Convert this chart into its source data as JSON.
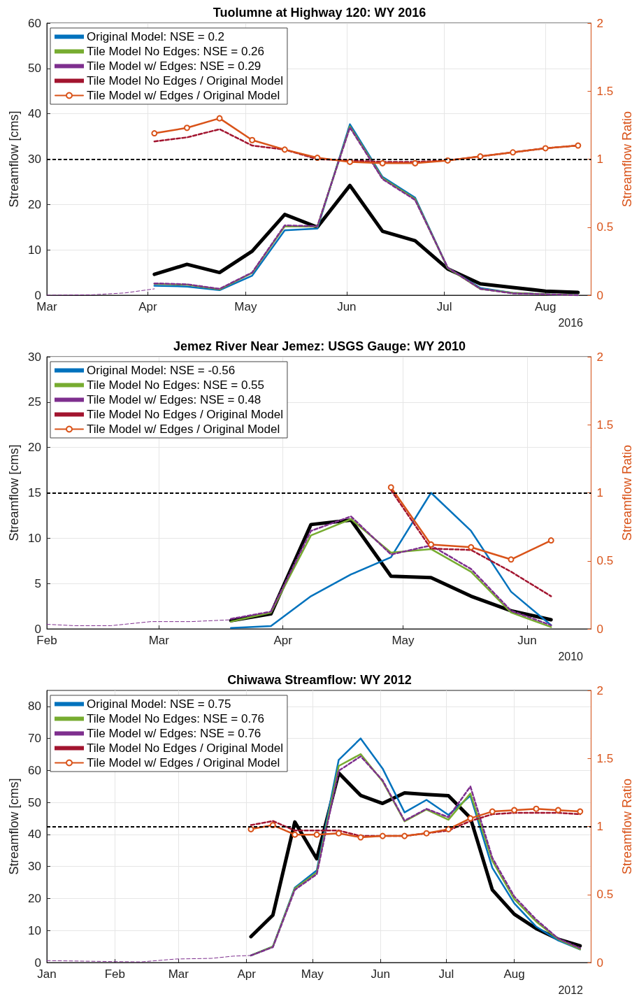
{
  "chart_data": [
    {
      "type": "line",
      "title": "Tuolumne at Highway 120: WY 2016",
      "ylabel": "Streamflow [cms]",
      "y2label": "Streamflow Ratio",
      "annotations": [
        "2016"
      ],
      "x": [
        "2016-04-03",
        "2016-04-13",
        "2016-04-23",
        "2016-05-03",
        "2016-05-13",
        "2016-05-23",
        "2016-06-02",
        "2016-06-12",
        "2016-06-22",
        "2016-07-02",
        "2016-07-12",
        "2016-07-22",
        "2016-08-01",
        "2016-08-11"
      ],
      "xlim": [
        "2016-03-01",
        "2016-08-15"
      ],
      "xticks": [
        {
          "value": "2016-03-01",
          "label": "Mar"
        },
        {
          "value": "2016-04-01",
          "label": "Apr"
        },
        {
          "value": "2016-05-01",
          "label": "May"
        },
        {
          "value": "2016-06-01",
          "label": "Jun"
        },
        {
          "value": "2016-07-01",
          "label": "Jul"
        },
        {
          "value": "2016-08-01",
          "label": "Aug"
        }
      ],
      "ylim": [
        0,
        60
      ],
      "yticks": [
        0,
        10,
        20,
        30,
        40,
        50,
        60
      ],
      "y2lim": [
        0,
        2
      ],
      "y2ticks": [
        0,
        0.5,
        1,
        1.5,
        2
      ],
      "grid": true,
      "legend": "top left",
      "ref_lines": [
        {
          "axis": "y2",
          "value": 1,
          "color": "#000000",
          "line_style": "dashed"
        }
      ],
      "series": [
        {
          "color": "#7e2f8e",
          "line_style": "dashed",
          "marker": "none",
          "x": [
            "2016-03-01",
            "2016-03-15",
            "2016-03-25",
            "2016-04-03"
          ],
          "values": [
            0,
            0.1,
            0.5,
            1.4
          ]
        },
        {
          "color": "#000000",
          "line_style": "solid",
          "marker": "none",
          "values": [
            4.6,
            6.8,
            5.0,
            9.7,
            17.8,
            15.0,
            24.2,
            14.1,
            12.0,
            5.8,
            2.5,
            1.7,
            0.9,
            0.6
          ]
        },
        {
          "name": "Original Model: NSE = 0.2",
          "color": "#0072bd",
          "line_style": "solid",
          "marker": "none",
          "values": [
            2.1,
            1.9,
            1.1,
            4.3,
            14.3,
            14.7,
            37.7,
            26.1,
            21.5,
            6.0,
            1.6,
            0.5,
            0.2,
            0
          ]
        },
        {
          "name": "Tile Model No Edges: NSE = 0.26",
          "color": "#77ac30",
          "line_style": "solid",
          "marker": "none",
          "values": [
            2.5,
            2.3,
            1.3,
            4.9,
            15.2,
            15.1,
            37.2,
            25.8,
            21.2,
            6.0,
            1.4,
            0.5,
            0.2,
            0
          ]
        },
        {
          "name": "Tile Model w/ Edges: NSE = 0.29",
          "color": "#7e2f8e",
          "line_style": "dashed",
          "marker": "none",
          "values": [
            2.6,
            2.4,
            1.4,
            5.0,
            15.4,
            15.2,
            37.0,
            25.6,
            21.0,
            6.1,
            1.4,
            0.4,
            0.2,
            0
          ]
        },
        {
          "name": "Tile Model No Edges / Original Model",
          "color": "#a2142f",
          "line_style": "dashed",
          "marker": "none",
          "axis": "y2",
          "values": [
            1.13,
            1.16,
            1.22,
            1.1,
            1.07,
            1.0,
            0.99,
            0.98,
            0.98,
            0.99,
            1.02,
            1.05,
            1.08,
            1.1
          ]
        },
        {
          "name": "Tile Model w/ Edges / Original Model",
          "color": "#d95319",
          "line_style": "solid",
          "marker": "circle",
          "axis": "y2",
          "values": [
            1.19,
            1.23,
            1.3,
            1.14,
            1.07,
            1.01,
            0.98,
            0.97,
            0.97,
            0.99,
            1.02,
            1.05,
            1.08,
            1.1
          ]
        }
      ]
    },
    {
      "type": "line",
      "title": "Jemez River Near Jemez: USGS Gauge: WY 2010",
      "ylabel": "Streamflow [cms]",
      "y2label": "Streamflow Ratio",
      "annotations": [
        "2010"
      ],
      "x": [
        "2010-03-19",
        "2010-03-29",
        "2010-04-08",
        "2010-04-18",
        "2010-04-28",
        "2010-05-08",
        "2010-05-18",
        "2010-05-28",
        "2010-06-07"
      ],
      "xlim": [
        "2010-02-01",
        "2010-06-17"
      ],
      "xticks": [
        {
          "value": "2010-02-01",
          "label": "Feb"
        },
        {
          "value": "2010-03-01",
          "label": "Mar"
        },
        {
          "value": "2010-04-01",
          "label": "Apr"
        },
        {
          "value": "2010-05-01",
          "label": "May"
        },
        {
          "value": "2010-06-01",
          "label": "Jun"
        }
      ],
      "ylim": [
        0,
        30
      ],
      "yticks": [
        0,
        5,
        10,
        15,
        20,
        25,
        30
      ],
      "y2lim": [
        0,
        2
      ],
      "y2ticks": [
        0,
        0.5,
        1,
        1.5,
        2
      ],
      "grid": true,
      "legend": "top left",
      "ref_lines": [
        {
          "axis": "y2",
          "value": 1,
          "color": "#000000",
          "line_style": "dashed"
        }
      ],
      "series": [
        {
          "color": "#7e2f8e",
          "line_style": "dashed",
          "marker": "none",
          "x": [
            "2010-02-01",
            "2010-02-08",
            "2010-02-17",
            "2010-02-27",
            "2010-03-09",
            "2010-03-19"
          ],
          "values": [
            0.5,
            0.35,
            0.35,
            0.8,
            0.8,
            1.0
          ]
        },
        {
          "color": "#000000",
          "line_style": "solid",
          "marker": "none",
          "values": [
            0.9,
            1.65,
            11.5,
            12.0,
            5.8,
            5.65,
            3.6,
            2.0,
            1.0
          ]
        },
        {
          "name": "Original Model: NSE = -0.56",
          "color": "#0072bd",
          "line_style": "solid",
          "marker": "none",
          "values": [
            0.1,
            0.3,
            3.6,
            6.0,
            7.9,
            15.0,
            10.8,
            4.1,
            0.4
          ]
        },
        {
          "name": "Tile Model No Edges: NSE = 0.55",
          "color": "#77ac30",
          "line_style": "solid",
          "marker": "none",
          "values": [
            0.8,
            1.8,
            10.3,
            12.1,
            8.4,
            8.8,
            6.3,
            1.8,
            0.2
          ]
        },
        {
          "name": "Tile Model w/ Edges: NSE = 0.48",
          "color": "#7e2f8e",
          "line_style": "dashed",
          "marker": "none",
          "values": [
            1.1,
            1.9,
            10.8,
            12.4,
            8.2,
            9.2,
            6.6,
            2.0,
            0.4
          ]
        },
        {
          "name": "Tile Model No Edges / Original Model",
          "color": "#a2142f",
          "line_style": "dashed",
          "marker": "none",
          "axis": "y2",
          "values": [
            null,
            null,
            null,
            null,
            1.02,
            0.59,
            0.58,
            0.42,
            0.24
          ]
        },
        {
          "name": "Tile Model w/ Edges / Original Model",
          "color": "#d95319",
          "line_style": "solid",
          "marker": "circle",
          "axis": "y2",
          "values": [
            null,
            null,
            null,
            null,
            1.04,
            0.62,
            0.6,
            0.51,
            0.65
          ]
        }
      ]
    },
    {
      "type": "line",
      "title": "Chiwawa Streamflow: WY 2012",
      "ylabel": "Streamflow [cms]",
      "y2label": "Streamflow Ratio",
      "annotations": [
        "2012"
      ],
      "x": [
        "2012-04-03",
        "2012-04-13",
        "2012-04-23",
        "2012-05-03",
        "2012-05-13",
        "2012-05-23",
        "2012-06-02",
        "2012-06-12",
        "2012-06-22",
        "2012-07-02",
        "2012-07-12",
        "2012-07-22",
        "2012-08-01",
        "2012-08-11",
        "2012-08-21",
        "2012-08-31"
      ],
      "xlim": [
        "2012-01-01",
        "2012-09-05"
      ],
      "xticks": [
        {
          "value": "2012-01-01",
          "label": "Jan"
        },
        {
          "value": "2012-02-01",
          "label": "Feb"
        },
        {
          "value": "2012-03-01",
          "label": "Mar"
        },
        {
          "value": "2012-04-01",
          "label": "Apr"
        },
        {
          "value": "2012-05-01",
          "label": "May"
        },
        {
          "value": "2012-06-01",
          "label": "Jun"
        },
        {
          "value": "2012-07-01",
          "label": "Jul"
        },
        {
          "value": "2012-08-01",
          "label": "Aug"
        }
      ],
      "ylim": [
        0,
        85
      ],
      "yticks": [
        0,
        10,
        20,
        30,
        40,
        50,
        60,
        70,
        80
      ],
      "y2lim": [
        0,
        2
      ],
      "y2ticks": [
        0,
        0.5,
        1,
        1.5,
        2
      ],
      "grid": true,
      "legend": "top left",
      "ref_lines": [
        {
          "axis": "y2",
          "value": 1,
          "color": "#000000",
          "line_style": "dashed"
        }
      ],
      "series": [
        {
          "color": "#7e2f8e",
          "line_style": "dashed",
          "marker": "none",
          "x": [
            "2012-01-01",
            "2012-01-31",
            "2012-02-13",
            "2012-02-29",
            "2012-03-16",
            "2012-03-26",
            "2012-04-03"
          ],
          "values": [
            0.6,
            0.3,
            0.2,
            1.1,
            1.3,
            2.0,
            2.2
          ]
        },
        {
          "color": "#000000",
          "line_style": "solid",
          "marker": "none",
          "values": [
            8.1,
            14.8,
            43.9,
            32.4,
            59.2,
            52.2,
            49.7,
            53.0,
            52.5,
            52.1,
            45.2,
            22.7,
            15.1,
            10.6,
            7.3,
            5.2
          ]
        },
        {
          "name": "Original Model: NSE = 0.75",
          "color": "#0072bd",
          "line_style": "solid",
          "marker": "none",
          "values": [
            2.2,
            5.0,
            23.4,
            28.8,
            63.3,
            70.0,
            60.6,
            46.9,
            50.8,
            46.1,
            52.1,
            29.6,
            18.5,
            11.2,
            6.9,
            4.1
          ]
        },
        {
          "name": "Tile Model No Edges: NSE = 0.76",
          "color": "#77ac30",
          "line_style": "solid",
          "marker": "none",
          "values": [
            2.2,
            5.0,
            23.1,
            28.1,
            61.4,
            65.1,
            56.6,
            44.1,
            47.8,
            44.6,
            52.8,
            31.8,
            19.8,
            12.8,
            7.3,
            4.1
          ]
        },
        {
          "name": "Tile Model w/ Edges: NSE = 0.76",
          "color": "#7e2f8e",
          "line_style": "dashed",
          "marker": "none",
          "values": [
            2.2,
            4.8,
            22.7,
            27.6,
            59.9,
            64.4,
            56.9,
            44.3,
            48.0,
            45.4,
            55.0,
            32.7,
            20.6,
            13.4,
            7.5,
            4.5
          ]
        },
        {
          "name": "Tile Model No Edges / Original Model",
          "color": "#a2142f",
          "line_style": "dashed",
          "marker": "none",
          "axis": "y2",
          "values": [
            1.01,
            1.04,
            0.97,
            0.97,
            0.97,
            0.93,
            0.93,
            0.93,
            0.95,
            0.97,
            1.04,
            1.09,
            1.1,
            1.1,
            1.1,
            1.09
          ]
        },
        {
          "name": "Tile Model w/ Edges / Original Model",
          "color": "#d95319",
          "line_style": "solid",
          "marker": "circle",
          "axis": "y2",
          "values": [
            0.98,
            1.01,
            0.94,
            0.94,
            0.95,
            0.92,
            0.93,
            0.93,
            0.95,
            0.98,
            1.06,
            1.11,
            1.12,
            1.13,
            1.12,
            1.11
          ]
        }
      ]
    }
  ]
}
